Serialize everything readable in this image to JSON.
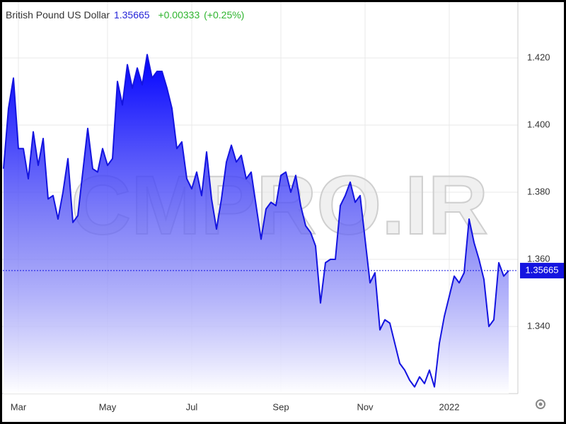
{
  "chart_data": {
    "type": "area",
    "title": "British Pound US Dollar",
    "price": "1.35665",
    "change": "+0.00333",
    "change_pct": "(+0.25%)",
    "watermark": "CMPRO.IR",
    "color": "#1414e0",
    "grid": true,
    "ylim": [
      1.32,
      1.436
    ],
    "yticks": [
      {
        "value": 1.34,
        "label": "1.340"
      },
      {
        "value": 1.36,
        "label": "1.360"
      },
      {
        "value": 1.38,
        "label": "1.380"
      },
      {
        "value": 1.4,
        "label": "1.400"
      },
      {
        "value": 1.42,
        "label": "1.420"
      }
    ],
    "categories": [
      null,
      null,
      null,
      "Mar",
      null,
      null,
      null,
      null,
      null,
      null,
      null,
      null,
      null,
      null,
      null,
      null,
      null,
      null,
      null,
      null,
      null,
      "May",
      null,
      null,
      null,
      null,
      null,
      null,
      null,
      null,
      null,
      null,
      null,
      null,
      null,
      null,
      null,
      null,
      "Jul",
      null,
      null,
      null,
      null,
      null,
      null,
      null,
      null,
      null,
      null,
      null,
      null,
      null,
      null,
      null,
      null,
      null,
      "Sep",
      null,
      null,
      null,
      null,
      null,
      null,
      null,
      null,
      null,
      null,
      null,
      null,
      null,
      null,
      null,
      null,
      "Nov",
      null,
      null,
      null,
      null,
      null,
      null,
      null,
      null,
      null,
      null,
      null,
      null,
      null,
      null,
      null,
      null,
      "2022",
      null,
      null,
      null,
      null,
      null,
      null,
      null,
      null,
      null,
      null,
      null,
      null
    ],
    "values": [
      1.387,
      1.405,
      1.414,
      1.393,
      1.393,
      1.384,
      1.398,
      1.388,
      1.396,
      1.378,
      1.379,
      1.372,
      1.38,
      1.39,
      1.371,
      1.373,
      1.386,
      1.399,
      1.387,
      1.386,
      1.393,
      1.388,
      1.39,
      1.413,
      1.406,
      1.418,
      1.411,
      1.417,
      1.412,
      1.421,
      1.414,
      1.416,
      1.416,
      1.411,
      1.405,
      1.393,
      1.395,
      1.384,
      1.381,
      1.386,
      1.379,
      1.392,
      1.378,
      1.369,
      1.378,
      1.389,
      1.394,
      1.389,
      1.391,
      1.384,
      1.386,
      1.376,
      1.366,
      1.375,
      1.377,
      1.376,
      1.385,
      1.386,
      1.38,
      1.385,
      1.376,
      1.37,
      1.368,
      1.364,
      1.347,
      1.359,
      1.36,
      1.36,
      1.376,
      1.379,
      1.383,
      1.377,
      1.379,
      1.366,
      1.353,
      1.356,
      1.339,
      1.342,
      1.341,
      1.335,
      1.329,
      1.327,
      1.324,
      1.322,
      1.325,
      1.323,
      1.327,
      1.322,
      1.335,
      1.343,
      1.349,
      1.355,
      1.353,
      1.356,
      1.372,
      1.365,
      1.36,
      1.354,
      1.34,
      1.342,
      1.359,
      1.355,
      1.35665
    ]
  }
}
